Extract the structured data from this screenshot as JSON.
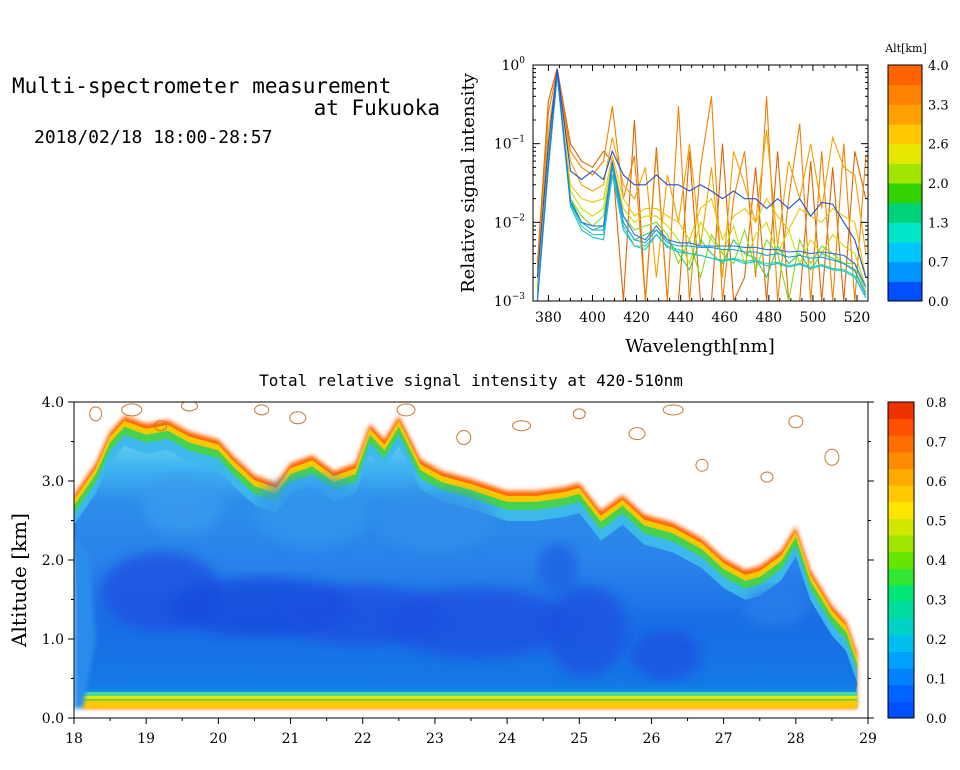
{
  "page": {
    "title_line1": "Multi-spectrometer measurement",
    "title_line2": "at Fukuoka",
    "datetime": "2018/02/18 18:00-28:57"
  },
  "chart_data": [
    {
      "type": "line",
      "xlabel": "Wavelength[nm]",
      "ylabel": "Relative signal intensity",
      "xlim": [
        373,
        525
      ],
      "ylim": [
        0.001,
        1
      ],
      "yscale": "log",
      "x_ticks": [
        "380",
        "400",
        "420",
        "440",
        "460",
        "480",
        "500",
        "520"
      ],
      "y_ticks": [
        {
          "base": "10",
          "exp": "0"
        },
        {
          "base": "10",
          "exp": "−1"
        },
        {
          "base": "10",
          "exp": "−2"
        },
        {
          "base": "10",
          "exp": "−3"
        }
      ],
      "colorbar": {
        "title": "Alt[km]",
        "ticks": [
          "4.0",
          "3.3",
          "2.6",
          "2.0",
          "1.3",
          "0.7",
          "0.0"
        ],
        "colors": [
          "#0050ff",
          "#0096ff",
          "#00c8ff",
          "#00e6c8",
          "#00d278",
          "#32d200",
          "#a0e600",
          "#e6e600",
          "#ffc800",
          "#ffa000",
          "#ff8200",
          "#ff6400"
        ]
      },
      "x": [
        375,
        380,
        384,
        390,
        395,
        400,
        405,
        409,
        414,
        419,
        424,
        429,
        434,
        439,
        444,
        449,
        454,
        459,
        464,
        469,
        474,
        479,
        484,
        489,
        494,
        499,
        504,
        509,
        514,
        519,
        524
      ],
      "series": [
        {
          "color": "#1d4fd8",
          "values": [
            0.002,
            0.1,
            0.9,
            0.045,
            0.035,
            0.045,
            0.035,
            0.08,
            0.04,
            0.03,
            0.03,
            0.04,
            0.03,
            0.03,
            0.025,
            0.03,
            0.025,
            0.02,
            0.025,
            0.02,
            0.02,
            0.015,
            0.02,
            0.015,
            0.02,
            0.012,
            0.018,
            0.017,
            0.01,
            0.006,
            0.002
          ]
        },
        {
          "color": "#2a73e6",
          "values": [
            0.001,
            0.06,
            0.85,
            0.018,
            0.01,
            0.009,
            0.009,
            0.06,
            0.012,
            0.007,
            0.006,
            0.009,
            0.006,
            0.0055,
            0.0055,
            0.005,
            0.005,
            0.005,
            0.005,
            0.0048,
            0.0048,
            0.0045,
            0.0045,
            0.0042,
            0.0043,
            0.004,
            0.0042,
            0.004,
            0.0038,
            0.003,
            0.0015
          ]
        },
        {
          "color": "#1a9ee6",
          "values": [
            0.001,
            0.05,
            0.8,
            0.018,
            0.01,
            0.008,
            0.008,
            0.05,
            0.01,
            0.006,
            0.0055,
            0.008,
            0.0055,
            0.005,
            0.005,
            0.0048,
            0.0048,
            0.0045,
            0.0045,
            0.0042,
            0.0042,
            0.0038,
            0.004,
            0.0036,
            0.0038,
            0.0035,
            0.0036,
            0.0033,
            0.003,
            0.0025,
            0.0012
          ]
        },
        {
          "color": "#19c2d6",
          "values": [
            0.0011,
            0.05,
            0.75,
            0.016,
            0.008,
            0.0065,
            0.006,
            0.04,
            0.008,
            0.005,
            0.0045,
            0.007,
            0.0048,
            0.0042,
            0.004,
            0.0038,
            0.0035,
            0.0032,
            0.0034,
            0.003,
            0.0032,
            0.0028,
            0.003,
            0.0027,
            0.0029,
            0.0026,
            0.0028,
            0.0025,
            0.0024,
            0.002,
            0.0011
          ]
        },
        {
          "color": "#26d2a8",
          "values": [
            0.0012,
            0.05,
            0.75,
            0.017,
            0.009,
            0.007,
            0.007,
            0.04,
            0.009,
            0.005,
            0.005,
            0.007,
            0.005,
            0.0045,
            0.004,
            0.0038,
            0.0035,
            0.0033,
            0.0035,
            0.0032,
            0.0033,
            0.003,
            0.0031,
            0.0028,
            0.003,
            0.0027,
            0.0029,
            0.0026,
            0.0025,
            0.0021,
            0.0011
          ]
        },
        {
          "color": "#36cc5c",
          "values": [
            0.0012,
            0.05,
            0.75,
            0.02,
            0.01,
            0.008,
            0.009,
            0.04,
            0.01,
            0.006,
            0.007,
            0.008,
            0.006,
            0.004,
            0.0025,
            0.006,
            0.004,
            0.003,
            0.006,
            0.004,
            0.0035,
            0.002,
            0.005,
            0.003,
            0.004,
            0.0025,
            0.004,
            0.0035,
            0.003,
            0.0024,
            0.0012
          ]
        },
        {
          "color": "#86d81a",
          "values": [
            0.0013,
            0.05,
            0.75,
            0.02,
            0.012,
            0.009,
            0.012,
            0.05,
            0.012,
            0.008,
            0.009,
            0.01,
            0.007,
            0.003,
            0.006,
            0.002,
            0.007,
            0.004,
            0.003,
            0.008,
            0.0025,
            0.006,
            0.004,
            0.001,
            0.006,
            0.003,
            0.005,
            0.004,
            0.003,
            0.003,
            0.0013
          ]
        },
        {
          "color": "#c8de00",
          "values": [
            0.0014,
            0.06,
            0.75,
            0.025,
            0.015,
            0.012,
            0.015,
            0.06,
            0.015,
            0.01,
            0.012,
            0.012,
            0.009,
            0.006,
            0.003,
            0.01,
            0.006,
            0.004,
            0.009,
            0.003,
            0.007,
            0.01,
            0.004,
            0.008,
            0.003,
            0.006,
            0.004,
            0.007,
            0.005,
            0.004,
            0.0015
          ]
        },
        {
          "color": "#f0c400",
          "values": [
            0.0016,
            0.08,
            0.75,
            0.03,
            0.02,
            0.018,
            0.02,
            0.07,
            0.02,
            0.012,
            0.015,
            0.015,
            0.012,
            0.01,
            0.006,
            0.015,
            0.02,
            0.006,
            0.012,
            0.015,
            0.01,
            0.02,
            0.012,
            0.008,
            0.015,
            0.012,
            0.01,
            0.015,
            0.012,
            0.01,
            0.002
          ]
        },
        {
          "color": "#f5a000",
          "values": [
            0.002,
            0.15,
            0.8,
            0.06,
            0.03,
            0.025,
            0.03,
            0.12,
            0.03,
            0.02,
            0.05,
            0.002,
            0.04,
            0.01,
            0.1,
            0.005,
            0.05,
            0.002,
            0.08,
            0.03,
            0.01,
            0.15,
            0.005,
            0.06,
            0.02,
            0.1,
            0.015,
            0.12,
            0.05,
            0.04,
            0.004
          ]
        },
        {
          "color": "#ef8200",
          "values": [
            0.0025,
            0.25,
            0.85,
            0.08,
            0.05,
            0.04,
            0.06,
            0.3,
            0.02,
            0.07,
            0.001,
            0.08,
            0.001,
            0.3,
            0.001,
            0.05,
            0.4,
            0.001,
            0.02,
            0.08,
            0.002,
            0.4,
            0.001,
            0.02,
            0.18,
            0.001,
            0.08,
            0.001,
            0.1,
            0.001,
            0.07
          ]
        },
        {
          "color": "#e06400",
          "values": [
            0.003,
            0.35,
            0.9,
            0.1,
            0.06,
            0.05,
            0.08,
            0.06,
            0.001,
            0.2,
            0.001,
            0.09,
            0.001,
            0.001,
            0.08,
            0.001,
            0.001,
            0.1,
            0.001,
            0.002,
            0.05,
            0.001,
            0.08,
            0.001,
            0.001,
            0.06,
            0.001,
            0.05,
            0.001,
            0.08,
            0.02
          ]
        }
      ]
    },
    {
      "type": "heatmap",
      "title": "Total relative signal intensity at 420-510nm",
      "xlabel": "",
      "ylabel": "Altitude [km]",
      "xlim": [
        18,
        29
      ],
      "ylim": [
        0,
        4
      ],
      "x_ticks": [
        "18",
        "19",
        "20",
        "21",
        "22",
        "23",
        "24",
        "25",
        "26",
        "27",
        "28",
        "29"
      ],
      "y_ticks": [
        "0.0",
        "1.0",
        "2.0",
        "3.0",
        "4.0"
      ],
      "colorbar": {
        "ticks": [
          "0.0",
          "0.1",
          "0.2",
          "0.3",
          "0.4",
          "0.5",
          "0.6",
          "0.7",
          "0.8"
        ],
        "colors": [
          "#0050ff",
          "#0064ff",
          "#0082ff",
          "#00a0ff",
          "#00bef0",
          "#00d2c8",
          "#00dca0",
          "#00e678",
          "#32e632",
          "#64e600",
          "#a0e600",
          "#d2e600",
          "#ffe600",
          "#ffc800",
          "#ffaa00",
          "#ff8c00",
          "#ff6e00",
          "#ff5000",
          "#f03200"
        ]
      },
      "cloud_top_km": {
        "x": [
          18.0,
          18.3,
          18.5,
          18.7,
          19.0,
          19.3,
          19.6,
          20.0,
          20.2,
          20.5,
          20.8,
          21.0,
          21.3,
          21.6,
          21.9,
          22.1,
          22.3,
          22.5,
          22.8,
          23.1,
          23.5,
          24.0,
          24.4,
          24.8,
          25.0,
          25.3,
          25.6,
          25.9,
          26.3,
          26.7,
          27.0,
          27.3,
          27.5,
          27.8,
          28.0,
          28.2,
          28.5,
          28.7,
          28.85
        ],
        "y": [
          2.8,
          3.2,
          3.6,
          3.8,
          3.7,
          3.75,
          3.6,
          3.5,
          3.3,
          3.05,
          2.95,
          3.2,
          3.3,
          3.1,
          3.2,
          3.7,
          3.5,
          3.8,
          3.25,
          3.1,
          3.0,
          2.85,
          2.85,
          2.9,
          2.95,
          2.6,
          2.8,
          2.55,
          2.45,
          2.25,
          2.0,
          1.85,
          1.9,
          2.1,
          2.4,
          1.85,
          1.4,
          1.2,
          0.8
        ]
      }
    }
  ]
}
